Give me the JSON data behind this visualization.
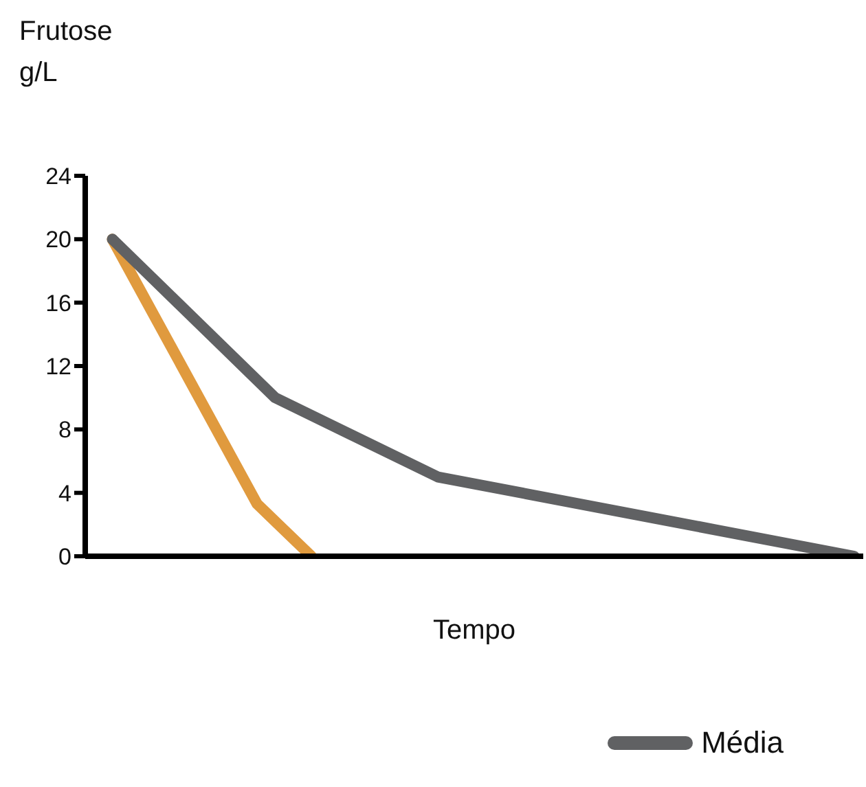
{
  "chart_data": {
    "type": "line",
    "title": "Frutose",
    "ylabel": "g/L",
    "xlabel": "Tempo",
    "categories": [
      null,
      null,
      null,
      null,
      null,
      null,
      null,
      null,
      null,
      null,
      null,
      null,
      null,
      null,
      null,
      null,
      null,
      null,
      null,
      null,
      null,
      null,
      null,
      null,
      null,
      null,
      null,
      null,
      null,
      null,
      null,
      null,
      null,
      null,
      null,
      null,
      null,
      null,
      null,
      null,
      null,
      null,
      null
    ],
    "ylim": [
      0,
      24
    ],
    "yticks": [
      0,
      4,
      8,
      12,
      16,
      20,
      24
    ],
    "tick_labels": "y",
    "grid": false,
    "legend": "bottom",
    "marker": "none",
    "line_style": "solid",
    "series": [
      {
        "color": "#e09a3e",
        "values": [
          null,
          20,
          null,
          null,
          null,
          null,
          null,
          null,
          null,
          3.3,
          null,
          null,
          0,
          null,
          null,
          null,
          null,
          null,
          null,
          null,
          null,
          null,
          null,
          null,
          null,
          null,
          null,
          null,
          null,
          null,
          null,
          null,
          null,
          null,
          null,
          null,
          null,
          null,
          null,
          null,
          null,
          null,
          null
        ]
      },
      {
        "name": "Média",
        "color": "#606163",
        "values": [
          null,
          20,
          null,
          null,
          null,
          null,
          null,
          null,
          null,
          null,
          10,
          null,
          null,
          null,
          null,
          null,
          null,
          null,
          null,
          5,
          null,
          null,
          null,
          null,
          null,
          null,
          null,
          null,
          null,
          null,
          null,
          null,
          null,
          null,
          null,
          null,
          null,
          null,
          null,
          null,
          null,
          null,
          0
        ]
      }
    ]
  }
}
